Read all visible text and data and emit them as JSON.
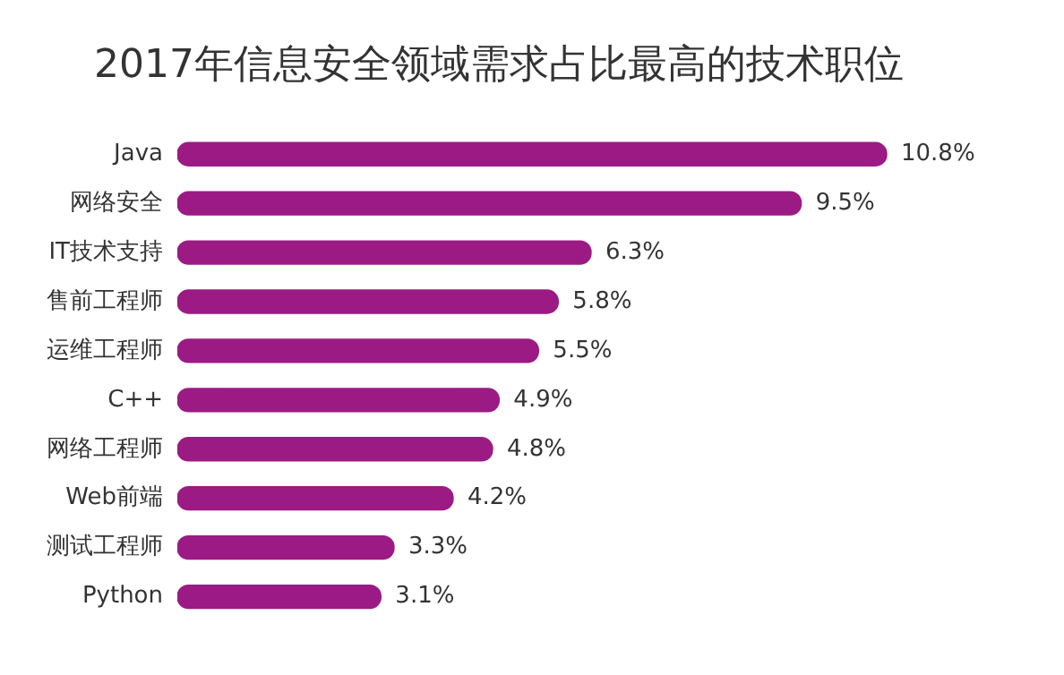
{
  "chart_data": {
    "type": "bar",
    "orientation": "horizontal",
    "title": "2017年信息安全领域需求占比最高的技术职位",
    "categories": [
      "Java",
      "网络安全",
      "IT技术支持",
      "售前工程师",
      "运维工程师",
      "C++",
      "网络工程师",
      "Web前端",
      "测试工程师",
      "Python"
    ],
    "values": [
      10.8,
      9.5,
      6.3,
      5.8,
      5.5,
      4.9,
      4.8,
      4.2,
      3.3,
      3.1
    ],
    "value_labels": [
      "10.8%",
      "9.5%",
      "6.3%",
      "5.8%",
      "5.5%",
      "4.9%",
      "4.8%",
      "4.2%",
      "3.3%",
      "3.1%"
    ],
    "color": "#9c1a84",
    "grid": false,
    "legend": false,
    "tick_labels": "y"
  }
}
